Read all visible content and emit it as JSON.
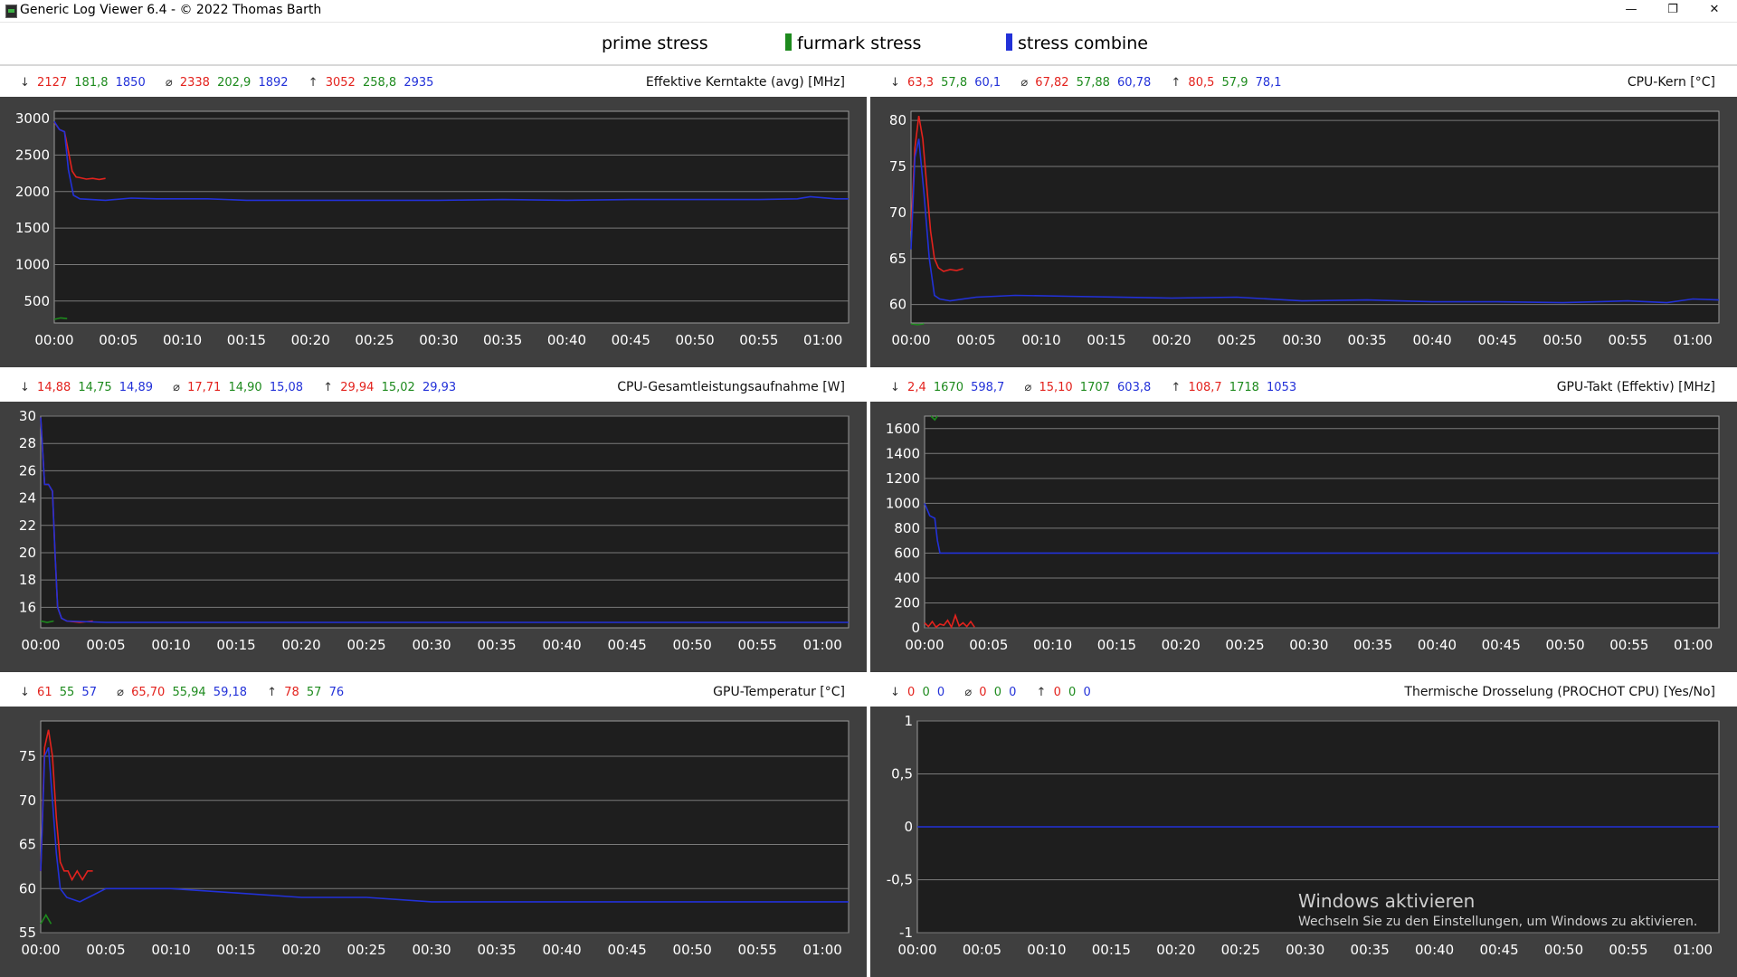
{
  "window": {
    "title": "Generic Log Viewer 6.4 - © 2022 Thomas Barth",
    "min_label": "—",
    "max_label": "❐",
    "close_label": "✕"
  },
  "legend": [
    {
      "label": "prime stress",
      "color": "#ffffff"
    },
    {
      "label": "furmark stress",
      "color": "#1d8a1d"
    },
    {
      "label": "stress combine",
      "color": "#2231d8"
    }
  ],
  "colors": {
    "red": "#e3221d",
    "green": "#1d8a1d",
    "blue": "#2231d8",
    "plot_bg": "#1e1e1e",
    "grid": "#7a7a7a"
  },
  "x_ticks": [
    "00:00",
    "00:05",
    "00:10",
    "00:15",
    "00:20",
    "00:25",
    "00:30",
    "00:35",
    "00:40",
    "00:45",
    "00:50",
    "00:55",
    "01:00"
  ],
  "panels": [
    {
      "title": "Effektive Kerntakte (avg) [MHz]",
      "stats": {
        "min": [
          "2127",
          "181,8",
          "1850"
        ],
        "avg": [
          "2338",
          "202,9",
          "1892"
        ],
        "max": [
          "3052",
          "258,8",
          "2935"
        ]
      }
    },
    {
      "title": "CPU-Kern [°C]",
      "stats": {
        "min": [
          "63,3",
          "57,8",
          "60,1"
        ],
        "avg": [
          "67,82",
          "57,88",
          "60,78"
        ],
        "max": [
          "80,5",
          "57,9",
          "78,1"
        ]
      }
    },
    {
      "title": "CPU-Gesamtleistungsaufnahme [W]",
      "stats": {
        "min": [
          "14,88",
          "14,75",
          "14,89"
        ],
        "avg": [
          "17,71",
          "14,90",
          "15,08"
        ],
        "max": [
          "29,94",
          "15,02",
          "29,93"
        ]
      }
    },
    {
      "title": "GPU-Takt (Effektiv) [MHz]",
      "stats": {
        "min": [
          "2,4",
          "1670",
          "598,7"
        ],
        "avg": [
          "15,10",
          "1707",
          "603,8"
        ],
        "max": [
          "108,7",
          "1718",
          "1053"
        ]
      }
    },
    {
      "title": "GPU-Temperatur [°C]",
      "stats": {
        "min": [
          "61",
          "55",
          "57"
        ],
        "avg": [
          "65,70",
          "55,94",
          "59,18"
        ],
        "max": [
          "78",
          "57",
          "76"
        ]
      }
    },
    {
      "title": "Thermische Drosselung (PROCHOT CPU) [Yes/No]",
      "stats": {
        "min": [
          "0",
          "0",
          "0"
        ],
        "avg": [
          "0",
          "0",
          "0"
        ],
        "max": [
          "0",
          "0",
          "0"
        ]
      }
    }
  ],
  "chart_data": [
    {
      "type": "line",
      "title": "Effektive Kerntakte (avg) [MHz]",
      "x_unit": "minutes",
      "xlim": [
        0,
        62
      ],
      "ylim": [
        200,
        3100
      ],
      "yticks": [
        "500",
        "1000",
        "1500",
        "2000",
        "2500",
        "3000"
      ],
      "series": [
        {
          "name": "prime stress",
          "x": [
            0,
            0.4,
            0.8,
            1.1,
            1.4,
            1.7,
            2.0,
            2.5,
            3.0,
            3.5,
            4.0
          ],
          "y": [
            2950,
            2850,
            2820,
            2550,
            2280,
            2200,
            2190,
            2170,
            2180,
            2165,
            2180
          ]
        },
        {
          "name": "furmark stress",
          "x": [
            0,
            0.5,
            1.0
          ],
          "y": [
            250,
            270,
            260
          ]
        },
        {
          "name": "stress combine",
          "x": [
            0,
            0.4,
            0.8,
            1.1,
            1.5,
            2,
            4,
            6,
            8,
            12,
            15,
            20,
            25,
            30,
            35,
            40,
            45,
            50,
            55,
            58,
            59,
            61,
            62
          ],
          "y": [
            2960,
            2850,
            2820,
            2300,
            1950,
            1900,
            1880,
            1910,
            1900,
            1900,
            1880,
            1880,
            1880,
            1880,
            1890,
            1880,
            1890,
            1890,
            1890,
            1900,
            1930,
            1900,
            1900
          ]
        }
      ]
    },
    {
      "type": "line",
      "title": "CPU-Kern [°C]",
      "x_unit": "minutes",
      "xlim": [
        0,
        62
      ],
      "ylim": [
        58,
        81
      ],
      "yticks": [
        "60",
        "65",
        "70",
        "75",
        "80"
      ],
      "series": [
        {
          "name": "prime stress",
          "x": [
            0,
            0.3,
            0.6,
            0.9,
            1.2,
            1.5,
            1.8,
            2.1,
            2.5,
            3.0,
            3.5,
            4.0
          ],
          "y": [
            68,
            77,
            80.5,
            78,
            73,
            68,
            65,
            64,
            63.6,
            63.8,
            63.7,
            63.9
          ]
        },
        {
          "name": "furmark stress",
          "x": [
            0,
            0.5,
            1.0
          ],
          "y": [
            57.9,
            57.8,
            57.9
          ]
        },
        {
          "name": "stress combine",
          "x": [
            0,
            0.3,
            0.6,
            1.0,
            1.4,
            1.8,
            2.2,
            3,
            5,
            8,
            12,
            20,
            25,
            30,
            35,
            40,
            45,
            50,
            55,
            58,
            60,
            62
          ],
          "y": [
            66,
            76,
            78,
            72,
            65,
            61,
            60.6,
            60.4,
            60.8,
            61,
            60.9,
            60.7,
            60.8,
            60.4,
            60.5,
            60.3,
            60.3,
            60.2,
            60.4,
            60.2,
            60.6,
            60.5
          ]
        }
      ]
    },
    {
      "type": "line",
      "title": "CPU-Gesamtleistungsaufnahme [W]",
      "x_unit": "minutes",
      "xlim": [
        0,
        62
      ],
      "ylim": [
        14.5,
        30
      ],
      "yticks": [
        "16",
        "18",
        "20",
        "22",
        "24",
        "26",
        "28",
        "30"
      ],
      "series": [
        {
          "name": "prime stress",
          "x": [
            0,
            0.3,
            0.6,
            0.9,
            1.1,
            1.3,
            1.6,
            2,
            3,
            4
          ],
          "y": [
            29.9,
            25,
            25,
            24.5,
            20,
            16,
            15.2,
            15,
            14.9,
            15
          ]
        },
        {
          "name": "furmark stress",
          "x": [
            0,
            0.5,
            1.0
          ],
          "y": [
            15,
            14.9,
            15
          ]
        },
        {
          "name": "stress combine",
          "x": [
            0,
            0.3,
            0.6,
            0.9,
            1.1,
            1.3,
            1.6,
            2,
            5,
            20,
            40,
            62
          ],
          "y": [
            29.9,
            25,
            25,
            24.5,
            20,
            16,
            15.2,
            15,
            14.9,
            14.9,
            14.9,
            14.9
          ]
        }
      ]
    },
    {
      "type": "line",
      "title": "GPU-Takt (Effektiv) [MHz]",
      "x_unit": "minutes",
      "xlim": [
        0,
        62
      ],
      "ylim": [
        0,
        1700
      ],
      "yticks": [
        "0",
        "200",
        "400",
        "600",
        "800",
        "1000",
        "1200",
        "1400",
        "1600"
      ],
      "series": [
        {
          "name": "prime stress",
          "x": [
            0,
            0.3,
            0.6,
            0.9,
            1.2,
            1.5,
            1.8,
            2.1,
            2.4,
            2.7,
            3.0,
            3.3,
            3.6,
            3.9
          ],
          "y": [
            40,
            10,
            50,
            5,
            30,
            20,
            60,
            5,
            100,
            15,
            40,
            10,
            50,
            5
          ]
        },
        {
          "name": "furmark stress",
          "x": [
            0.5,
            0.8,
            1.0
          ],
          "y": [
            1700,
            1670,
            1700
          ]
        },
        {
          "name": "stress combine",
          "x": [
            0,
            0.4,
            0.8,
            1.0,
            1.2,
            1.5,
            2,
            10,
            20,
            30,
            40,
            50,
            62
          ],
          "y": [
            1000,
            900,
            880,
            700,
            600,
            600,
            600,
            600,
            600,
            600,
            600,
            600,
            600
          ]
        }
      ]
    },
    {
      "type": "line",
      "title": "GPU-Temperatur [°C]",
      "x_unit": "minutes",
      "xlim": [
        0,
        62
      ],
      "ylim": [
        55,
        79
      ],
      "yticks": [
        "55",
        "60",
        "65",
        "70",
        "75"
      ],
      "series": [
        {
          "name": "prime stress",
          "x": [
            0,
            0.3,
            0.6,
            0.9,
            1.2,
            1.5,
            1.8,
            2.1,
            2.4,
            2.8,
            3.2,
            3.6,
            4.0
          ],
          "y": [
            62,
            76,
            78,
            75,
            68,
            63,
            62,
            62,
            61,
            62,
            61,
            62,
            62
          ]
        },
        {
          "name": "furmark stress",
          "x": [
            0,
            0.4,
            0.8
          ],
          "y": [
            56,
            57,
            56
          ]
        },
        {
          "name": "stress combine",
          "x": [
            0,
            0.3,
            0.6,
            0.9,
            1.2,
            1.5,
            2,
            3,
            5,
            10,
            15,
            20,
            25,
            30,
            35,
            40,
            45,
            50,
            55,
            60,
            62
          ],
          "y": [
            62,
            75,
            76,
            70,
            64,
            60,
            59,
            58.5,
            60,
            60,
            59.5,
            59,
            59,
            58.5,
            58.5,
            58.5,
            58.5,
            58.5,
            58.5,
            58.5,
            58.5
          ]
        }
      ]
    },
    {
      "type": "line",
      "title": "Thermische Drosselung (PROCHOT CPU) [Yes/No]",
      "x_unit": "minutes",
      "xlim": [
        0,
        62
      ],
      "ylim": [
        -1,
        1
      ],
      "yticks": [
        "-1",
        "-0,5",
        "0",
        "0,5",
        "1"
      ],
      "series": [
        {
          "name": "stress combine",
          "x": [
            0,
            62
          ],
          "y": [
            0,
            0
          ]
        }
      ]
    }
  ],
  "watermark": {
    "title": "Windows aktivieren",
    "subtitle": "Wechseln Sie zu den Einstellungen, um Windows zu aktivieren."
  }
}
